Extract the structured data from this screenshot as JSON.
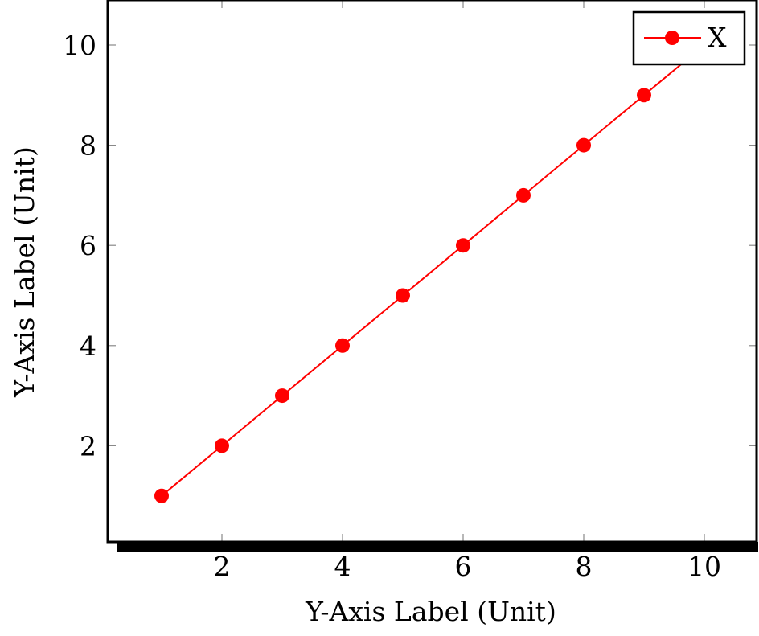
{
  "chart_data": {
    "type": "line",
    "title": "",
    "xlabel": "Y-Axis Label (Unit)",
    "ylabel": "Y-Axis Label (Unit)",
    "xlim": [
      0.1,
      10.9
    ],
    "ylim": [
      0.1,
      10.9
    ],
    "x_ticks": [
      2,
      4,
      6,
      8,
      10
    ],
    "y_ticks": [
      2,
      4,
      6,
      8,
      10
    ],
    "x_tick_labels": [
      "2",
      "4",
      "6",
      "8",
      "10"
    ],
    "y_tick_labels": [
      "2",
      "4",
      "6",
      "8",
      "10"
    ],
    "grid": false,
    "legend": {
      "position": "top-right",
      "entries": [
        "X"
      ]
    },
    "series": [
      {
        "name": "X",
        "color": "#ff0000",
        "marker": "circle",
        "x": [
          1,
          2,
          3,
          4,
          5,
          6,
          7,
          8,
          9,
          10
        ],
        "y": [
          1,
          2,
          3,
          4,
          5,
          6,
          7,
          8,
          9,
          10
        ]
      }
    ]
  }
}
